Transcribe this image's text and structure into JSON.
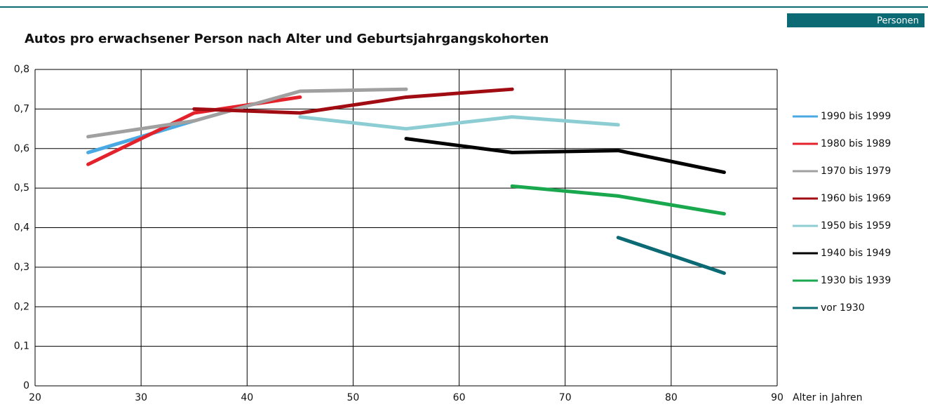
{
  "chart_data": {
    "type": "line",
    "title": "Autos pro erwachsener Person nach Alter und Geburtsjahrgangskohorten",
    "unit_label": "Personen",
    "x_label": "Alter in Jahren",
    "xlim": [
      20,
      90
    ],
    "xticks": [
      20,
      30,
      40,
      50,
      60,
      70,
      80,
      90
    ],
    "ylim": [
      0,
      0.8
    ],
    "yticks": [
      0,
      {
        "value": 0.1,
        "label": "0,1"
      },
      {
        "value": 0.2,
        "label": "0,2"
      },
      {
        "value": 0.3,
        "label": "0,3"
      },
      {
        "value": 0.4,
        "label": "0,4"
      },
      {
        "value": 0.5,
        "label": "0,5"
      },
      {
        "value": 0.6,
        "label": "0,6"
      },
      {
        "value": 0.7,
        "label": "0,7"
      },
      {
        "value": 0.8,
        "label": "0,8"
      }
    ],
    "grid": true,
    "legend": "right",
    "series": [
      {
        "name": "1990 bis 1999",
        "color": "#4aa9e3",
        "x": [
          25,
          35
        ],
        "values": [
          0.59,
          0.67
        ]
      },
      {
        "name": "1980 bis 1989",
        "color": "#e3222b",
        "x": [
          25,
          35,
          45
        ],
        "values": [
          0.56,
          0.69,
          0.73
        ]
      },
      {
        "name": "1970 bis 1979",
        "color": "#a0a0a0",
        "x": [
          25,
          35,
          45,
          55
        ],
        "values": [
          0.63,
          0.67,
          0.745,
          0.75
        ]
      },
      {
        "name": "1960 bis 1969",
        "color": "#a00c12",
        "x": [
          35,
          45,
          55,
          65
        ],
        "values": [
          0.7,
          0.69,
          0.73,
          0.75
        ]
      },
      {
        "name": "1950 bis 1959",
        "color": "#8ccdd3",
        "x": [
          45,
          55,
          65,
          75
        ],
        "values": [
          0.68,
          0.65,
          0.68,
          0.66
        ]
      },
      {
        "name": "1940 bis 1949",
        "color": "#000000",
        "x": [
          55,
          65,
          75,
          85
        ],
        "values": [
          0.625,
          0.59,
          0.595,
          0.54
        ]
      },
      {
        "name": "1930 bis 1939",
        "color": "#1aa84f",
        "x": [
          65,
          75,
          85
        ],
        "values": [
          0.505,
          0.48,
          0.435
        ]
      },
      {
        "name": "vor 1930",
        "color": "#0b6a73",
        "x": [
          75,
          85
        ],
        "values": [
          0.375,
          0.285
        ]
      }
    ]
  }
}
